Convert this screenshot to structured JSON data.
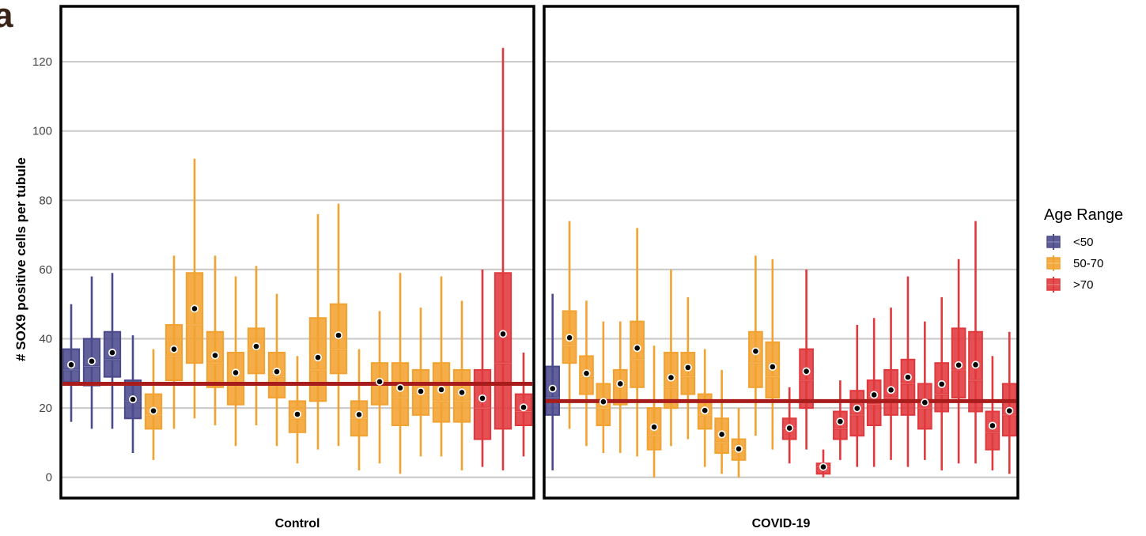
{
  "panel_label": "a",
  "chart_data": {
    "type": "boxplot",
    "ylabel": "# SOX9 positive cells per tubule",
    "xlabel": "",
    "ylim": [
      -6,
      136
    ],
    "yticks": [
      0,
      20,
      40,
      60,
      80,
      100,
      120
    ],
    "grid": "horizontal",
    "legend": {
      "title": "Age Range",
      "position": "right",
      "entries": [
        {
          "label": "<50",
          "color": "#4b4a8c"
        },
        {
          "label": "50-70",
          "color": "#f2a230"
        },
        {
          "label": ">70",
          "color": "#e0383c"
        }
      ]
    },
    "panels": [
      {
        "name": "Control",
        "reference_line": 27,
        "boxes": [
          {
            "group": "<50",
            "min": 16,
            "q1": 27.5,
            "median": 31,
            "q3": 37,
            "max": 50,
            "mean": 32.5
          },
          {
            "group": "<50",
            "min": 14,
            "q1": 26.5,
            "median": 32,
            "q3": 40,
            "max": 58,
            "mean": 33.5
          },
          {
            "group": "<50",
            "min": 14,
            "q1": 29,
            "median": 34,
            "q3": 42,
            "max": 59,
            "mean": 36
          },
          {
            "group": "<50",
            "min": 7,
            "q1": 17,
            "median": 22,
            "q3": 28,
            "max": 41,
            "mean": 22.5
          },
          {
            "group": "50-70",
            "min": 5,
            "q1": 14,
            "median": 18,
            "q3": 24,
            "max": 37,
            "mean": 19.2
          },
          {
            "group": "50-70",
            "min": 14,
            "q1": 28,
            "median": 35,
            "q3": 44,
            "max": 64,
            "mean": 37
          },
          {
            "group": "50-70",
            "min": 17,
            "q1": 33,
            "median": 44,
            "q3": 59,
            "max": 92,
            "mean": 48.7
          },
          {
            "group": "50-70",
            "min": 15,
            "q1": 26,
            "median": 33,
            "q3": 42,
            "max": 64,
            "mean": 35.2
          },
          {
            "group": "50-70",
            "min": 9,
            "q1": 21,
            "median": 27,
            "q3": 36,
            "max": 58,
            "mean": 30.2
          },
          {
            "group": "50-70",
            "min": 15,
            "q1": 30,
            "median": 37,
            "q3": 43,
            "max": 61,
            "mean": 37.8
          },
          {
            "group": "50-70",
            "min": 9,
            "q1": 23,
            "median": 29,
            "q3": 36,
            "max": 53,
            "mean": 30.5
          },
          {
            "group": "50-70",
            "min": 4,
            "q1": 13,
            "median": 17,
            "q3": 22,
            "max": 35,
            "mean": 18.2
          },
          {
            "group": "50-70",
            "min": 8,
            "q1": 22,
            "median": 31,
            "q3": 46,
            "max": 76,
            "mean": 34.6
          },
          {
            "group": "50-70",
            "min": 9,
            "q1": 30,
            "median": 37,
            "q3": 50,
            "max": 79,
            "mean": 41
          },
          {
            "group": "50-70",
            "min": 2,
            "q1": 12,
            "median": 17,
            "q3": 22,
            "max": 37,
            "mean": 18.1
          },
          {
            "group": "50-70",
            "min": 4,
            "q1": 21,
            "median": 27,
            "q3": 33,
            "max": 48,
            "mean": 27.6
          },
          {
            "group": "50-70",
            "min": 1,
            "q1": 15,
            "median": 23,
            "q3": 33,
            "max": 59,
            "mean": 25.8
          },
          {
            "group": "50-70",
            "min": 6,
            "q1": 18,
            "median": 24,
            "q3": 31,
            "max": 49,
            "mean": 24.8
          },
          {
            "group": "50-70",
            "min": 6,
            "q1": 16,
            "median": 22,
            "q3": 33,
            "max": 58,
            "mean": 25.3
          },
          {
            "group": "50-70",
            "min": 2,
            "q1": 16,
            "median": 22,
            "q3": 31,
            "max": 51,
            "mean": 24.5
          },
          {
            "group": ">70",
            "min": 3,
            "q1": 11,
            "median": 20,
            "q3": 31,
            "max": 60,
            "mean": 22.8
          },
          {
            "group": ">70",
            "min": 2,
            "q1": 14,
            "median": 33,
            "q3": 59,
            "max": 124,
            "mean": 41.4
          },
          {
            "group": ">70",
            "min": 6,
            "q1": 15,
            "median": 19,
            "q3": 24,
            "max": 36,
            "mean": 20.2
          }
        ]
      },
      {
        "name": "COVID-19",
        "reference_line": 22,
        "boxes": [
          {
            "group": "<50",
            "min": 2,
            "q1": 18,
            "median": 23,
            "q3": 32,
            "max": 53,
            "mean": 25.6
          },
          {
            "group": "50-70",
            "min": 14,
            "q1": 33,
            "median": 38,
            "q3": 48,
            "max": 74,
            "mean": 40.3
          },
          {
            "group": "50-70",
            "min": 9,
            "q1": 24,
            "median": 29,
            "q3": 35,
            "max": 51,
            "mean": 30
          },
          {
            "group": "50-70",
            "min": 7,
            "q1": 15,
            "median": 20,
            "q3": 27,
            "max": 45,
            "mean": 21.8
          },
          {
            "group": "50-70",
            "min": 7,
            "q1": 21,
            "median": 27,
            "q3": 31,
            "max": 45,
            "mean": 27
          },
          {
            "group": "50-70",
            "min": 6,
            "q1": 26,
            "median": 34,
            "q3": 45,
            "max": 72,
            "mean": 37.3
          },
          {
            "group": "50-70",
            "min": 0,
            "q1": 8,
            "median": 12,
            "q3": 20,
            "max": 38,
            "mean": 14.5
          },
          {
            "group": "50-70",
            "min": 9,
            "q1": 20,
            "median": 26,
            "q3": 36,
            "max": 60,
            "mean": 28.8
          },
          {
            "group": "50-70",
            "min": 11,
            "q1": 24,
            "median": 29,
            "q3": 36,
            "max": 52,
            "mean": 31.7
          },
          {
            "group": "50-70",
            "min": 3,
            "q1": 14,
            "median": 18,
            "q3": 24,
            "max": 37,
            "mean": 19.3
          },
          {
            "group": "50-70",
            "min": 1,
            "q1": 7,
            "median": 10,
            "q3": 17,
            "max": 31,
            "mean": 12.4
          },
          {
            "group": "50-70",
            "min": 0,
            "q1": 5,
            "median": 8,
            "q3": 11,
            "max": 20,
            "mean": 8.2
          },
          {
            "group": "50-70",
            "min": 12,
            "q1": 26,
            "median": 33,
            "q3": 42,
            "max": 64,
            "mean": 36.4
          },
          {
            "group": "50-70",
            "min": 8,
            "q1": 23,
            "median": 29,
            "q3": 39,
            "max": 63,
            "mean": 31.9
          },
          {
            "group": ">70",
            "min": 4,
            "q1": 11,
            "median": 14,
            "q3": 17,
            "max": 26,
            "mean": 14.2
          },
          {
            "group": ">70",
            "min": 8,
            "q1": 20,
            "median": 28,
            "q3": 37,
            "max": 60,
            "mean": 30.6
          },
          {
            "group": ">70",
            "min": 0,
            "q1": 1,
            "median": 3,
            "q3": 4,
            "max": 8,
            "mean": 3
          },
          {
            "group": ">70",
            "min": 5,
            "q1": 11,
            "median": 14,
            "q3": 19,
            "max": 28,
            "mean": 16.1
          },
          {
            "group": ">70",
            "min": 3,
            "q1": 12,
            "median": 18,
            "q3": 25,
            "max": 44,
            "mean": 19.9
          },
          {
            "group": ">70",
            "min": 3,
            "q1": 15,
            "median": 21,
            "q3": 28,
            "max": 46,
            "mean": 23.8
          },
          {
            "group": ">70",
            "min": 5,
            "q1": 18,
            "median": 23,
            "q3": 31,
            "max": 49,
            "mean": 25.2
          },
          {
            "group": ">70",
            "min": 3,
            "q1": 18,
            "median": 27,
            "q3": 34,
            "max": 58,
            "mean": 28.9
          },
          {
            "group": ">70",
            "min": 5,
            "q1": 14,
            "median": 20,
            "q3": 27,
            "max": 45,
            "mean": 21.6
          },
          {
            "group": ">70",
            "min": 2,
            "q1": 19,
            "median": 24,
            "q3": 33,
            "max": 52,
            "mean": 26.9
          },
          {
            "group": ">70",
            "min": 4,
            "q1": 23,
            "median": 31,
            "q3": 43,
            "max": 63,
            "mean": 32.4
          },
          {
            "group": ">70",
            "min": 4,
            "q1": 19,
            "median": 28,
            "q3": 42,
            "max": 74,
            "mean": 32.5
          },
          {
            "group": ">70",
            "min": 2,
            "q1": 8,
            "median": 13,
            "q3": 19,
            "max": 35,
            "mean": 14.9
          },
          {
            "group": ">70",
            "min": 1,
            "q1": 12,
            "median": 18,
            "q3": 27,
            "max": 42,
            "mean": 19.2
          }
        ]
      }
    ]
  }
}
